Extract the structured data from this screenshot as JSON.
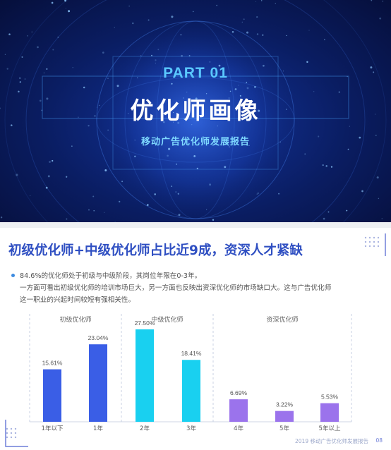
{
  "cover": {
    "part": "PART 01",
    "title": "优化师画像",
    "subtitle": "移动广告优化师发展报告"
  },
  "slide": {
    "title": "初级优化师+中级优化师占比近9成，资深人才紧缺",
    "bullet_lines": [
      "84.6%的优化师处于初级与中级阶段，其岗位年限在0-3年。",
      "一方面可看出初级优化师的培训市场巨大，另一方面也反映出资深优化师的市场缺口大。这与广告优化师",
      "这一职业的兴起时间较短有强相关性。"
    ],
    "footer": "2019 移动广告优化师发展报告",
    "page": "08"
  },
  "chart_data": {
    "type": "bar",
    "ylim": [
      0,
      30
    ],
    "groups": [
      {
        "name": "初级优化师",
        "color": "#3a5ee6",
        "categories": [
          "1年以下",
          "1年"
        ],
        "values": [
          15.61,
          23.04
        ],
        "labels": [
          "15.61%",
          "23.04%"
        ]
      },
      {
        "name": "中级优化师",
        "color": "#19d0f0",
        "categories": [
          "2年",
          "3年"
        ],
        "values": [
          27.5,
          18.41
        ],
        "labels": [
          "27.50%",
          "18.41%"
        ]
      },
      {
        "name": "资深优化师",
        "color": "#9b73ec",
        "categories": [
          "4年",
          "5年",
          "5年以上"
        ],
        "values": [
          6.69,
          3.22,
          5.53
        ],
        "labels": [
          "6.69%",
          "3.22%",
          "5.53%"
        ]
      }
    ]
  }
}
